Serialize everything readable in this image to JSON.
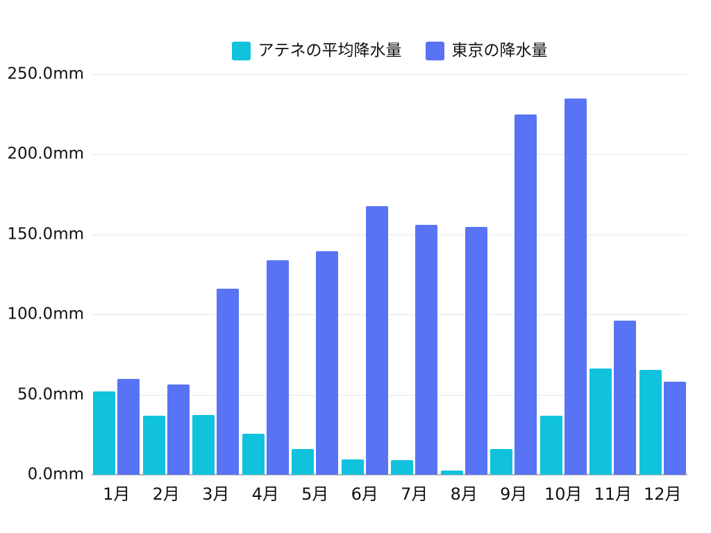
{
  "chart_data": {
    "type": "bar",
    "title": "",
    "xlabel": "",
    "ylabel": "",
    "unit": "mm",
    "ylim": [
      0,
      250
    ],
    "grid": "horizontal",
    "legend_position": "top-center",
    "categories": [
      "1月",
      "2月",
      "3月",
      "4月",
      "5月",
      "6月",
      "7月",
      "8月",
      "9月",
      "10月",
      "11月",
      "12月"
    ],
    "series": [
      {
        "name": "アテネの平均降水量",
        "color": "#10C2DC",
        "values": [
          52.1,
          36.8,
          37.4,
          25.7,
          16.0,
          9.7,
          9.0,
          2.5,
          16.2,
          36.9,
          66.1,
          65.3
        ]
      },
      {
        "name": "東京の降水量",
        "color": "#5873F3",
        "values": [
          59.7,
          56.5,
          116.0,
          133.7,
          139.7,
          167.8,
          156.2,
          154.7,
          224.9,
          234.8,
          96.3,
          57.9
        ]
      }
    ],
    "y_ticks": [
      {
        "value": 0,
        "label": "0.0mm"
      },
      {
        "value": 50,
        "label": "50.0mm"
      },
      {
        "value": 100,
        "label": "100.0mm"
      },
      {
        "value": 150,
        "label": "150.0mm"
      },
      {
        "value": 200,
        "label": "200.0mm"
      },
      {
        "value": 250,
        "label": "250.0mm"
      }
    ],
    "colors": {
      "gridline": "#e6e6e6",
      "baseline": "#b3b3b3",
      "text": "#111111",
      "background": "#ffffff"
    }
  }
}
